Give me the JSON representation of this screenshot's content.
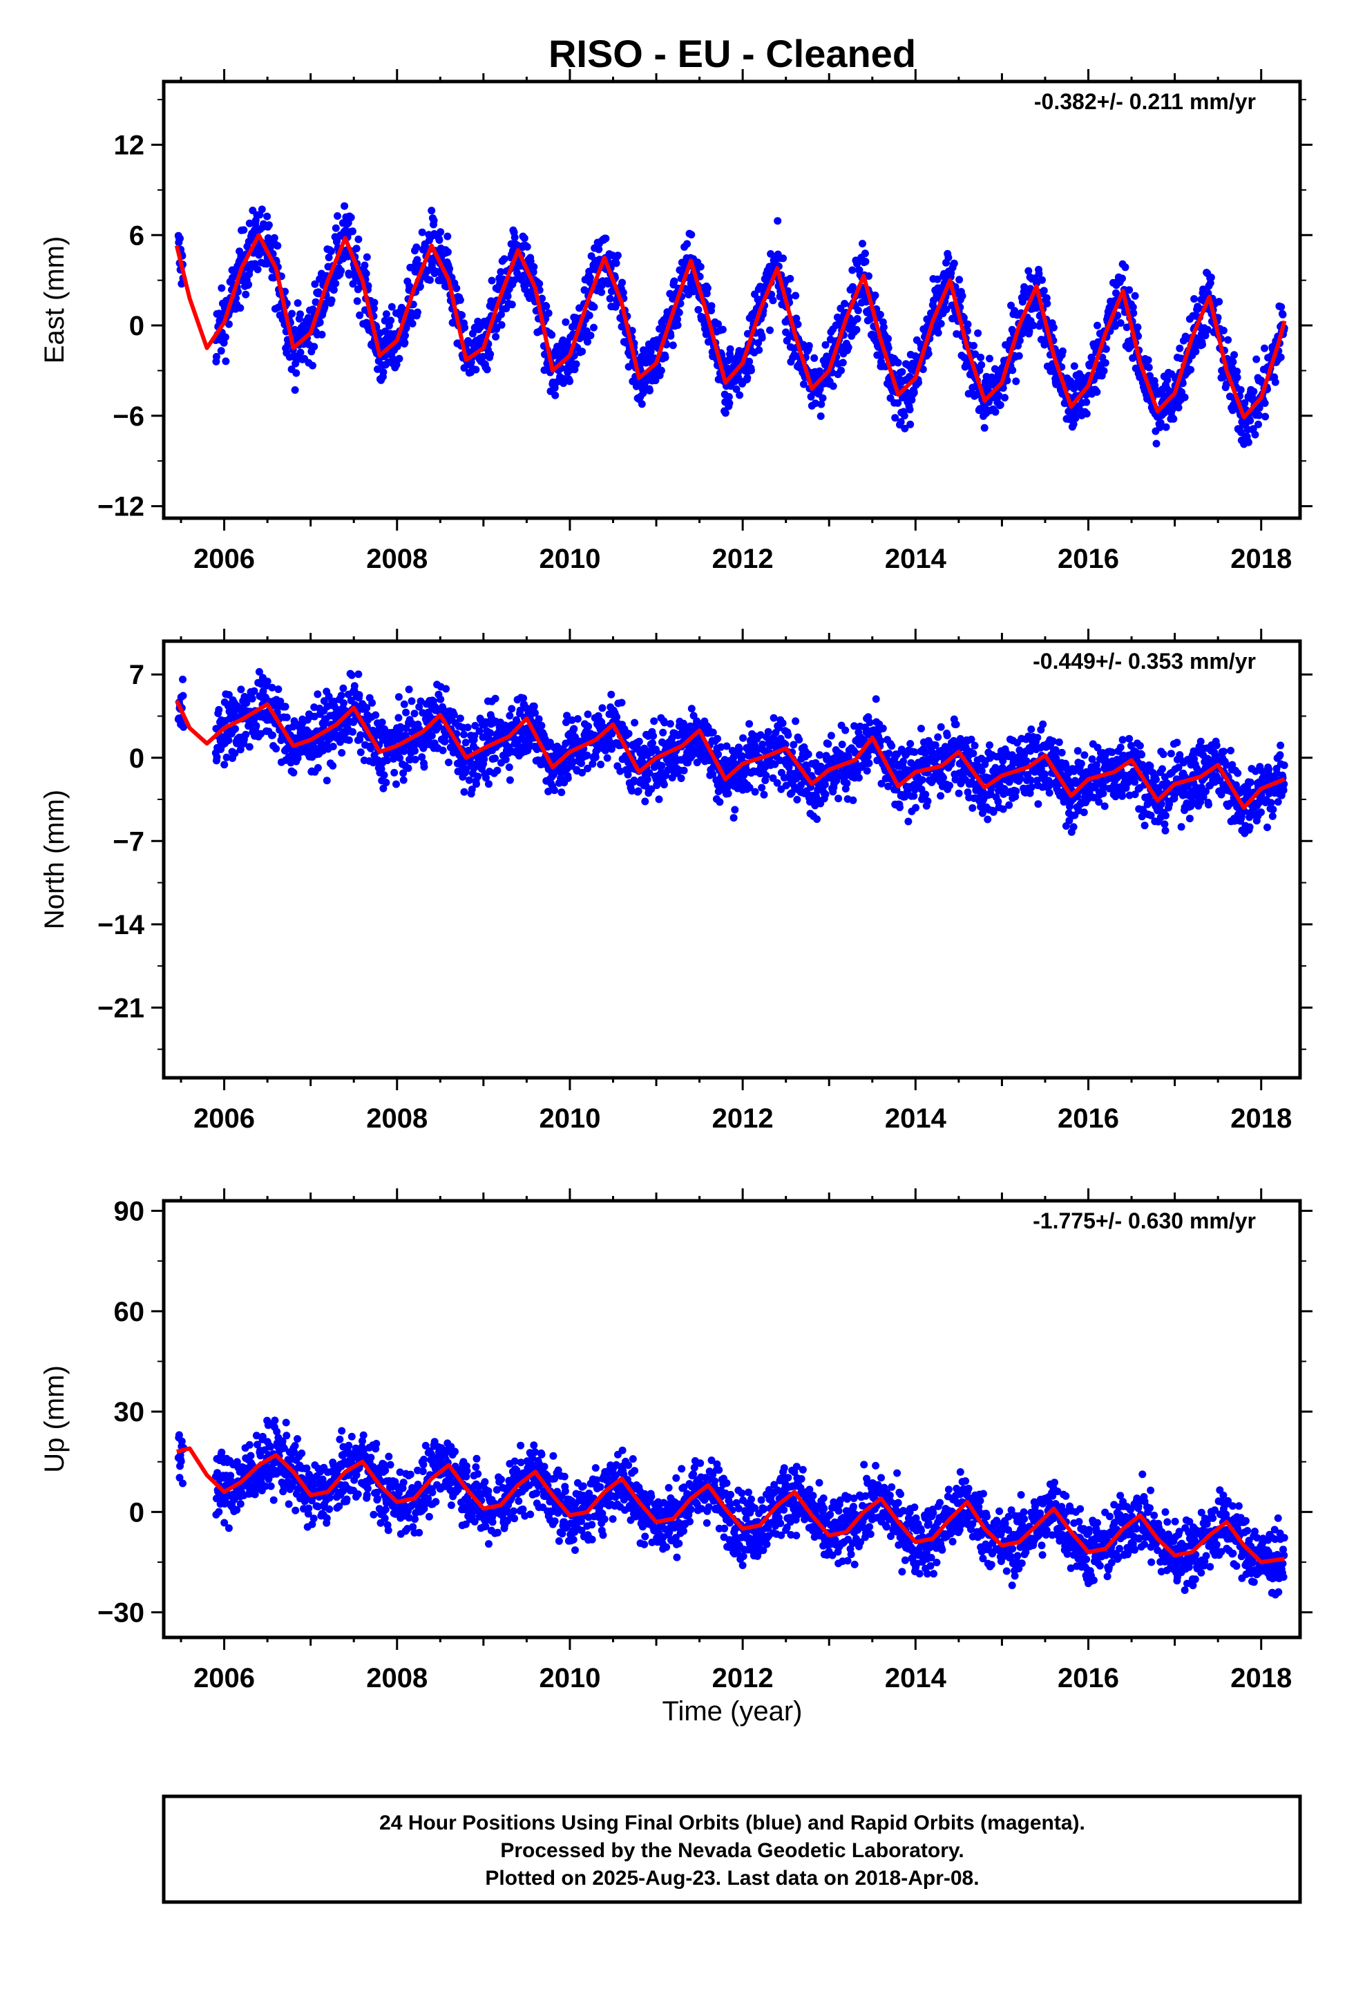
{
  "title": "RISO  - EU - Cleaned",
  "xlabel": "Time (year)",
  "caption": [
    "24 Hour Positions Using Final Orbits (blue) and Rapid Orbits (magenta).",
    "Processed by the Nevada Geodetic Laboratory.",
    "Plotted on 2025-Aug-23. Last data on 2018-Apr-08."
  ],
  "colors": {
    "points": "#0000ff",
    "model": "#ff0000"
  },
  "x_ticks": [
    "2006",
    "2008",
    "2010",
    "2012",
    "2014",
    "2016",
    "2018"
  ],
  "chart_data": [
    {
      "type": "scatter",
      "ylabel": "East (mm)",
      "rate": "-0.382+/- 0.211 mm/yr",
      "xlim": [
        2005.3,
        2018.45
      ],
      "ylim": [
        -12.8,
        16.2
      ],
      "yticks": [
        -12,
        -6,
        0,
        6,
        12
      ],
      "ytick_labels": [
        "−12",
        "−6",
        "0",
        "6",
        "12"
      ],
      "series": [
        {
          "kind": "model-line",
          "x": [
            2005.45,
            2005.6,
            2005.8,
            2006.0,
            2006.2,
            2006.4,
            2006.6,
            2006.8,
            2007.0,
            2007.2,
            2007.4,
            2007.6,
            2007.8,
            2008.0,
            2008.2,
            2008.4,
            2008.6,
            2008.8,
            2009.0,
            2009.2,
            2009.4,
            2009.6,
            2009.8,
            2010.0,
            2010.2,
            2010.4,
            2010.6,
            2010.8,
            2011.0,
            2011.2,
            2011.4,
            2011.6,
            2011.8,
            2012.0,
            2012.2,
            2012.4,
            2012.6,
            2012.8,
            2013.0,
            2013.2,
            2013.4,
            2013.6,
            2013.8,
            2014.0,
            2014.2,
            2014.4,
            2014.6,
            2014.8,
            2015.0,
            2015.2,
            2015.4,
            2015.6,
            2015.8,
            2016.0,
            2016.2,
            2016.4,
            2016.6,
            2016.8,
            2017.0,
            2017.2,
            2017.4,
            2017.6,
            2017.8,
            2018.0,
            2018.2,
            2018.27
          ],
          "y": [
            5.3,
            1.8,
            -1.5,
            0.2,
            3.8,
            6.0,
            3.8,
            -1.5,
            -0.5,
            3.0,
            5.8,
            3.0,
            -2.0,
            -1.0,
            2.5,
            5.3,
            3.0,
            -2.3,
            -1.5,
            2.0,
            5.0,
            2.5,
            -3.0,
            -2.0,
            1.5,
            4.5,
            1.5,
            -3.5,
            -2.5,
            1.0,
            4.3,
            0.5,
            -3.8,
            -2.5,
            1.0,
            3.8,
            -0.5,
            -4.2,
            -3.0,
            0.5,
            3.3,
            -1.0,
            -4.6,
            -3.5,
            0.3,
            3.0,
            -1.5,
            -5.0,
            -3.8,
            0.0,
            2.6,
            -2.0,
            -5.4,
            -4.0,
            -0.5,
            2.3,
            -2.5,
            -5.7,
            -4.5,
            -0.8,
            1.9,
            -3.0,
            -6.1,
            -4.8,
            -1.2,
            0.3
          ]
        }
      ]
    },
    {
      "type": "scatter",
      "ylabel": "North (mm)",
      "rate": "-0.449+/- 0.353 mm/yr",
      "xlim": [
        2005.3,
        2018.45
      ],
      "ylim": [
        -26.9,
        9.8
      ],
      "yticks": [
        -21,
        -14,
        -7,
        0,
        7
      ],
      "ytick_labels": [
        "−21",
        "−14",
        "−7",
        "0",
        "7"
      ],
      "series": [
        {
          "kind": "model-line",
          "x": [
            2005.45,
            2005.6,
            2005.8,
            2006.0,
            2006.2,
            2006.5,
            2006.8,
            2007.0,
            2007.3,
            2007.5,
            2007.8,
            2008.0,
            2008.3,
            2008.5,
            2008.8,
            2009.0,
            2009.3,
            2009.5,
            2009.8,
            2010.0,
            2010.3,
            2010.5,
            2010.8,
            2011.0,
            2011.3,
            2011.5,
            2011.8,
            2012.0,
            2012.3,
            2012.5,
            2012.8,
            2013.0,
            2013.3,
            2013.5,
            2013.8,
            2014.0,
            2014.3,
            2014.5,
            2014.8,
            2015.0,
            2015.3,
            2015.5,
            2015.8,
            2016.0,
            2016.3,
            2016.5,
            2016.8,
            2017.0,
            2017.3,
            2017.5,
            2017.8,
            2018.0,
            2018.27
          ],
          "y": [
            4.8,
            2.5,
            1.2,
            2.5,
            3.2,
            4.5,
            1.0,
            1.5,
            2.8,
            4.2,
            0.5,
            1.0,
            2.2,
            3.6,
            0.0,
            0.8,
            1.8,
            3.3,
            -0.8,
            0.5,
            1.5,
            2.8,
            -1.2,
            0.0,
            1.0,
            2.3,
            -1.8,
            -0.5,
            0.2,
            0.8,
            -2.2,
            -1.0,
            -0.2,
            1.7,
            -2.4,
            -1.2,
            -0.7,
            0.5,
            -2.5,
            -1.5,
            -0.8,
            0.2,
            -3.2,
            -1.8,
            -1.2,
            -0.2,
            -3.6,
            -2.2,
            -1.6,
            -0.6,
            -4.2,
            -2.6,
            -1.8
          ]
        }
      ]
    },
    {
      "type": "scatter",
      "ylabel": "Up (mm)",
      "rate": "-1.775+/- 0.630 mm/yr",
      "xlim": [
        2005.3,
        2018.45
      ],
      "ylim": [
        -37.5,
        93.0
      ],
      "yticks": [
        -30,
        0,
        30,
        60,
        90
      ],
      "ytick_labels": [
        "−30",
        "0",
        "30",
        "60",
        "90"
      ],
      "series": [
        {
          "kind": "model-line",
          "x": [
            2005.45,
            2005.6,
            2005.8,
            2006.0,
            2006.2,
            2006.4,
            2006.6,
            2006.8,
            2007.0,
            2007.2,
            2007.4,
            2007.6,
            2007.8,
            2008.0,
            2008.2,
            2008.4,
            2008.6,
            2008.8,
            2009.0,
            2009.2,
            2009.4,
            2009.6,
            2009.8,
            2010.0,
            2010.2,
            2010.4,
            2010.6,
            2010.8,
            2011.0,
            2011.2,
            2011.4,
            2011.6,
            2011.8,
            2012.0,
            2012.2,
            2012.4,
            2012.6,
            2012.8,
            2013.0,
            2013.2,
            2013.4,
            2013.6,
            2013.8,
            2014.0,
            2014.2,
            2014.4,
            2014.6,
            2014.8,
            2015.0,
            2015.2,
            2015.4,
            2015.6,
            2015.8,
            2016.0,
            2016.2,
            2016.4,
            2016.6,
            2016.8,
            2017.0,
            2017.2,
            2017.4,
            2017.6,
            2017.8,
            2018.0,
            2018.27
          ],
          "y": [
            18.0,
            19.0,
            11.0,
            6.0,
            9.0,
            14.0,
            17.0,
            12.0,
            5.0,
            6.0,
            12.0,
            15.0,
            8.0,
            3.0,
            4.0,
            10.0,
            14.0,
            7.0,
            1.0,
            2.0,
            8.0,
            12.0,
            5.0,
            -1.0,
            0.0,
            6.0,
            10.0,
            3.0,
            -3.0,
            -2.0,
            4.0,
            8.0,
            1.0,
            -5.0,
            -4.0,
            2.0,
            6.0,
            -1.0,
            -7.0,
            -6.0,
            0.0,
            4.0,
            -3.0,
            -9.0,
            -8.0,
            -2.0,
            3.0,
            -5.0,
            -10.0,
            -9.0,
            -4.0,
            1.0,
            -6.0,
            -12.0,
            -11.0,
            -5.0,
            -1.0,
            -8.0,
            -13.0,
            -12.0,
            -7.0,
            -3.0,
            -10.0,
            -15.0,
            -14.0
          ]
        }
      ]
    }
  ]
}
